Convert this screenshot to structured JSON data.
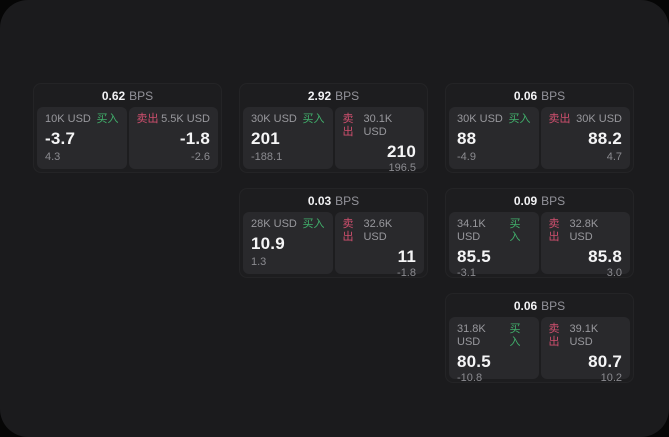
{
  "labels": {
    "bps_unit": "BPS",
    "buy": "买入",
    "sell": "卖出"
  },
  "colors": {
    "panel_bg": "#1b1b1d",
    "card_bg": "#1d1d1f",
    "subpanel_bg": "#29292c",
    "buy_green": "#41b06c",
    "sell_red": "#cf4f6e",
    "value_white": "#f5f5f6",
    "muted_gray": "#98989d"
  },
  "cards": [
    {
      "bps": "0.62",
      "buy": {
        "size": "10K USD",
        "price": "-3.7",
        "delta": "4.3"
      },
      "sell": {
        "size": "5.5K USD",
        "price": "-1.8",
        "delta": "-2.6"
      }
    },
    {
      "bps": "2.92",
      "buy": {
        "size": "30K USD",
        "price": "201",
        "delta": "-188.1"
      },
      "sell": {
        "size": "30.1K USD",
        "price": "210",
        "delta": "196.5"
      }
    },
    {
      "bps": "0.03",
      "buy": {
        "size": "28K USD",
        "price": "10.9",
        "delta": "1.3"
      },
      "sell": {
        "size": "32.6K USD",
        "price": "11",
        "delta": "-1.8"
      }
    },
    {
      "bps": "0.06",
      "buy": {
        "size": "30K USD",
        "price": "88",
        "delta": "-4.9"
      },
      "sell": {
        "size": "30K USD",
        "price": "88.2",
        "delta": "4.7"
      }
    },
    {
      "bps": "0.09",
      "buy": {
        "size": "34.1K USD",
        "price": "85.5",
        "delta": "-3.1"
      },
      "sell": {
        "size": "32.8K USD",
        "price": "85.8",
        "delta": "3.0"
      }
    },
    {
      "bps": "0.06",
      "buy": {
        "size": "31.8K USD",
        "price": "80.5",
        "delta": "-10.8"
      },
      "sell": {
        "size": "39.1K USD",
        "price": "80.7",
        "delta": "10.2"
      }
    }
  ]
}
